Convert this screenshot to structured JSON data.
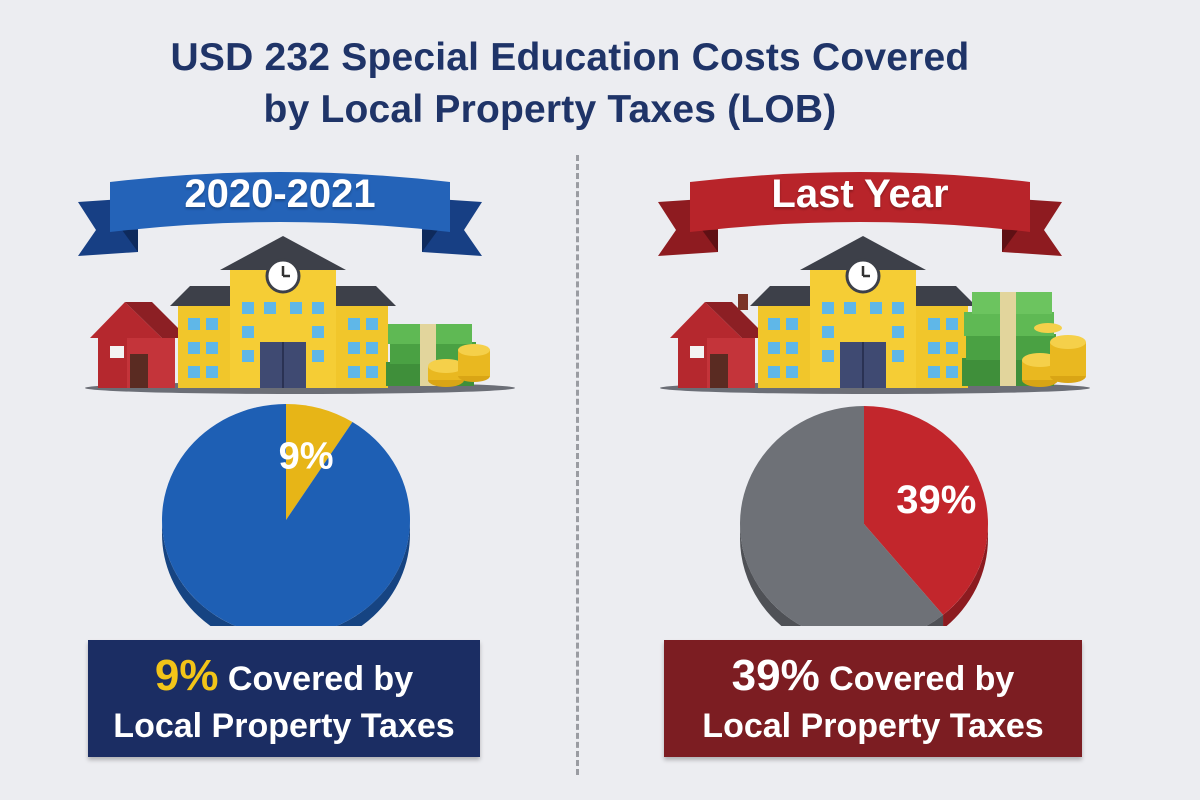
{
  "title": {
    "line1": "USD 232 Special Education Costs Covered",
    "line2": "by Local Property Taxes (LOB)"
  },
  "colors": {
    "title": "#1f3468",
    "left_ribbon": "#1f5bb0",
    "left_caption_bg": "#1b2d63",
    "left_accent": "#f2c418",
    "right_ribbon": "#b8242a",
    "right_caption_bg": "#7c1d22",
    "right_pie_rest": "#6e7177",
    "right_slice": "#c2262c",
    "left_pie_rest": "#1e5fb4",
    "left_slice": "#e7b517"
  },
  "icons": [
    "house-icon",
    "school-building-icon",
    "clock-icon",
    "money-stack-icon",
    "coin-stack-icon"
  ],
  "chart_data": [
    {
      "type": "pie",
      "title": "2020-2021",
      "slices": [
        {
          "label": "9%",
          "value": 9,
          "color": "#e7b517"
        },
        {
          "label": "",
          "value": 91,
          "color": "#1e5fb4"
        }
      ]
    },
    {
      "type": "pie",
      "title": "Last Year",
      "slices": [
        {
          "label": "39%",
          "value": 39,
          "color": "#c2262c"
        },
        {
          "label": "",
          "value": 61,
          "color": "#6e7177"
        }
      ]
    }
  ],
  "left": {
    "ribbon_label": "2020-2021",
    "caption_pct": "9%",
    "caption_line1_rest": " Covered by",
    "caption_line2": "Local Property Taxes"
  },
  "right": {
    "ribbon_label": "Last Year",
    "caption_pct": "39%",
    "caption_line1_rest": " Covered by",
    "caption_line2": "Local Property Taxes"
  }
}
